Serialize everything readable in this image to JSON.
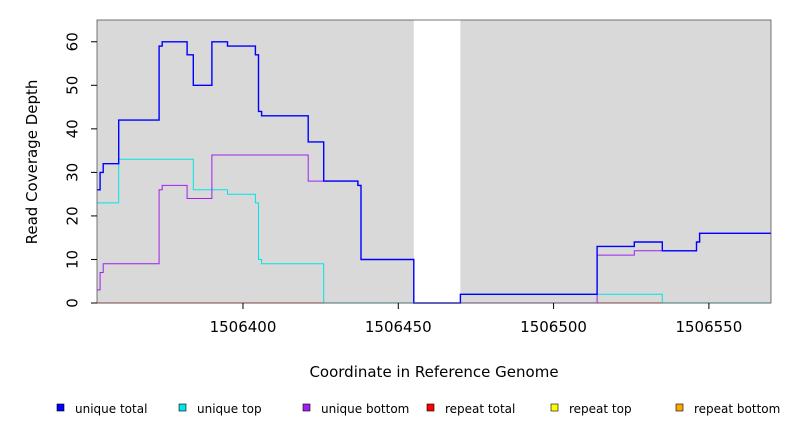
{
  "chart_data": {
    "type": "line",
    "xlabel": "Coordinate in Reference Genome",
    "ylabel": "Read Coverage Depth",
    "xlim": [
      1506353,
      1506570
    ],
    "ylim": [
      0,
      65
    ],
    "xticks": [
      1506400,
      1506450,
      1506500,
      1506550
    ],
    "xtick_labels": [
      "1506400",
      "1506450",
      "1506500",
      "1506550"
    ],
    "yticks": [
      0,
      10,
      20,
      30,
      40,
      50,
      60
    ],
    "ytick_labels": [
      "0",
      "10",
      "20",
      "30",
      "40",
      "50",
      "60"
    ],
    "background_color": "#d9d9d9",
    "gap_region": [
      1506455,
      1506470
    ],
    "grid": false,
    "legend_position": "bottom",
    "series": [
      {
        "name": "unique total",
        "color": "#0000ff",
        "x": [
          1506353,
          1506354,
          1506355,
          1506360,
          1506373,
          1506374,
          1506382,
          1506384,
          1506390,
          1506395,
          1506404,
          1506405,
          1506406,
          1506421,
          1506426,
          1506437,
          1506438,
          1506455,
          1506470,
          1506514,
          1506526,
          1506535,
          1506546,
          1506547,
          1506570
        ],
        "values": [
          26,
          30,
          32,
          42,
          59,
          60,
          57,
          50,
          60,
          59,
          57,
          44,
          43,
          37,
          28,
          27,
          10,
          0,
          2,
          13,
          14,
          12,
          14,
          16,
          16
        ]
      },
      {
        "name": "unique top",
        "color": "#00e5e5",
        "x": [
          1506353,
          1506360,
          1506384,
          1506395,
          1506404,
          1506405,
          1506406,
          1506426,
          1506455,
          1506470,
          1506514,
          1506535,
          1506570
        ],
        "values": [
          23,
          33,
          26,
          25,
          23,
          10,
          9,
          0,
          0,
          2,
          2,
          0,
          0
        ]
      },
      {
        "name": "unique bottom",
        "color": "#a020f0",
        "x": [
          1506353,
          1506354,
          1506355,
          1506373,
          1506374,
          1506382,
          1506390,
          1506421,
          1506437,
          1506438,
          1506455,
          1506470,
          1506514,
          1506526,
          1506535,
          1506546,
          1506547,
          1506570
        ],
        "values": [
          3,
          7,
          9,
          26,
          27,
          24,
          34,
          28,
          27,
          10,
          0,
          0,
          11,
          12,
          12,
          14,
          16,
          16
        ]
      },
      {
        "name": "repeat total",
        "color": "#ff0000",
        "x": [
          1506353,
          1506570
        ],
        "values": [
          0,
          0
        ]
      },
      {
        "name": "repeat top",
        "color": "#ffff00",
        "x": [
          1506353,
          1506570
        ],
        "values": [
          0,
          0
        ]
      },
      {
        "name": "repeat bottom",
        "color": "#ffa500",
        "x": [
          1506353,
          1506426,
          1506570
        ],
        "values": [
          0,
          0,
          0
        ]
      }
    ]
  }
}
